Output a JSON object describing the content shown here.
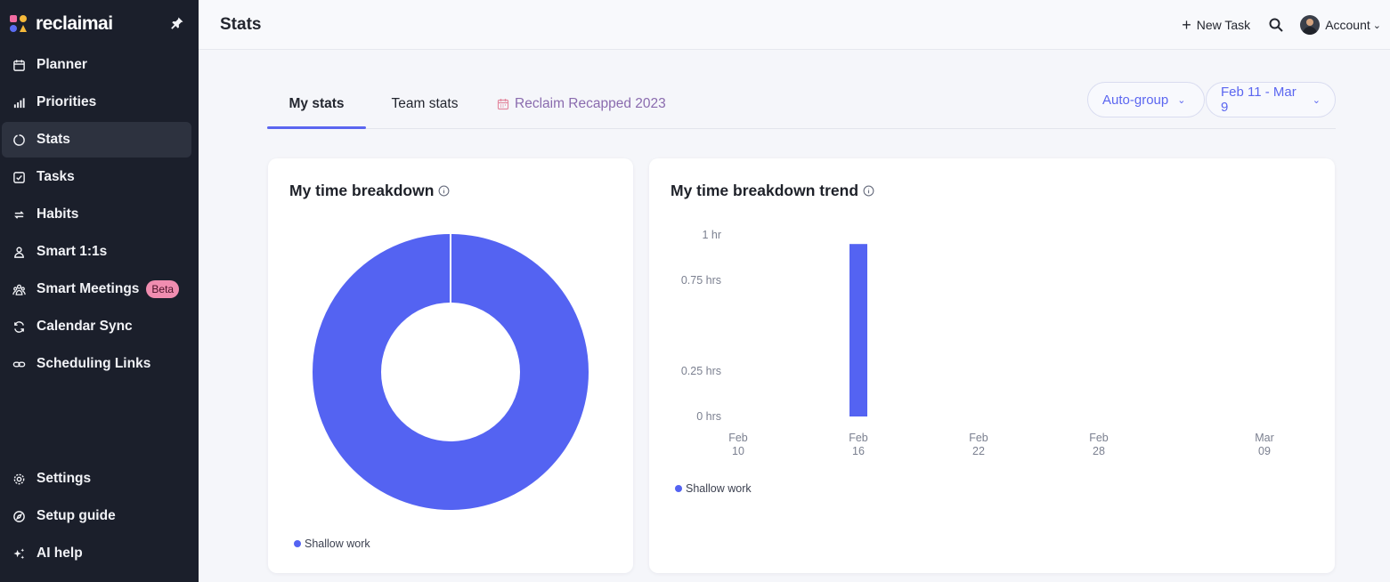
{
  "brand": {
    "name": "reclaimai"
  },
  "sidebar": {
    "items": [
      {
        "label": "Planner",
        "icon": "calendar-icon"
      },
      {
        "label": "Priorities",
        "icon": "bar-chart-icon"
      },
      {
        "label": "Stats",
        "icon": "stats-ring-icon",
        "active": true
      },
      {
        "label": "Tasks",
        "icon": "checkbox-icon"
      },
      {
        "label": "Habits",
        "icon": "repeat-icon"
      },
      {
        "label": "Smart 1:1s",
        "icon": "people-icon"
      },
      {
        "label": "Smart Meetings",
        "icon": "group-icon",
        "badge": "Beta"
      },
      {
        "label": "Calendar Sync",
        "icon": "sync-icon"
      },
      {
        "label": "Scheduling Links",
        "icon": "link-icon"
      }
    ],
    "bottom": [
      {
        "label": "Settings",
        "icon": "gear-icon"
      },
      {
        "label": "Setup guide",
        "icon": "compass-icon"
      },
      {
        "label": "AI help",
        "icon": "sparkles-icon"
      }
    ]
  },
  "header": {
    "title": "Stats",
    "new_task": "New Task",
    "account": "Account"
  },
  "tabs": {
    "my_stats": "My stats",
    "team_stats": "Team stats",
    "recap": "Reclaim Recapped 2023"
  },
  "filters": {
    "group": "Auto-group",
    "range": "Feb 11 - Mar 9"
  },
  "colors": {
    "accent": "#5463f2",
    "sidebar_bg": "#1b1f2b",
    "badge": "#f08db0"
  },
  "breakdown": {
    "title": "My time breakdown",
    "chart_data": {
      "type": "pie",
      "labels": [
        "Shallow work"
      ],
      "values": [
        100
      ],
      "colors": [
        "#5463f2"
      ],
      "legend": "bottom-left"
    },
    "legend_label": "Shallow work"
  },
  "trend": {
    "title": "My time breakdown trend",
    "chart_data": {
      "type": "bar",
      "y_ticks": [
        {
          "value": 0,
          "label": "0 hrs"
        },
        {
          "value": 0.25,
          "label": "0.25 hrs"
        },
        {
          "value": 0.75,
          "label": "0.75 hrs"
        },
        {
          "value": 1,
          "label": "1 hr"
        }
      ],
      "ylim": [
        0,
        1
      ],
      "x_ticks": [
        {
          "line1": "Feb",
          "line2": "10"
        },
        {
          "line1": "Feb",
          "line2": "16"
        },
        {
          "line1": "Feb",
          "line2": "22"
        },
        {
          "line1": "Feb",
          "line2": "28"
        },
        {
          "line1": "Mar",
          "line2": "09"
        }
      ],
      "series": [
        {
          "name": "Shallow work",
          "color": "#5463f2",
          "points": [
            {
              "x": "Feb 16",
              "value": 0.95
            }
          ]
        }
      ],
      "legend": "bottom-left"
    },
    "legend_label": "Shallow work"
  }
}
